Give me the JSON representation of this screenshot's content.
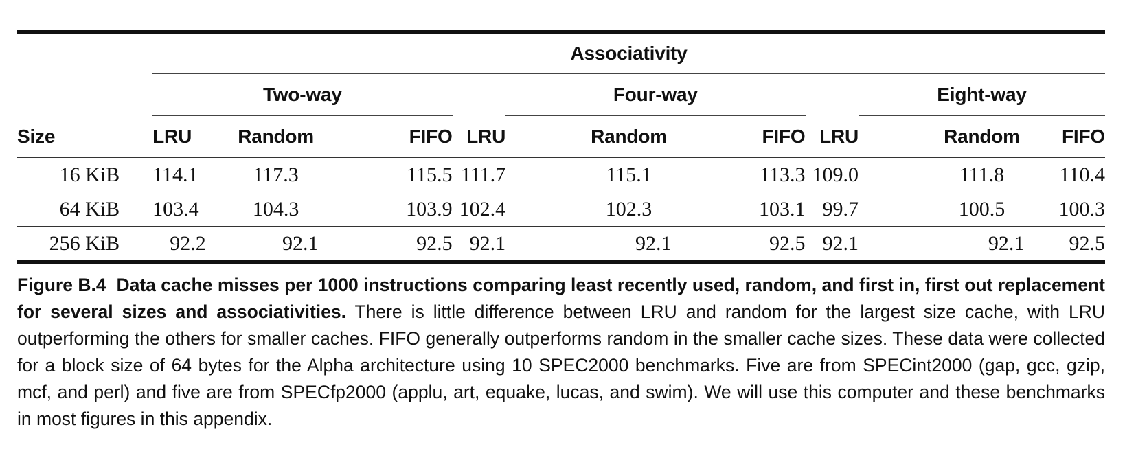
{
  "table": {
    "super_header": "Associativity",
    "groups": [
      "Two-way",
      "Four-way",
      "Eight-way"
    ],
    "columns": [
      "Size",
      "LRU",
      "Random",
      "FIFO",
      "LRU",
      "Random",
      "FIFO",
      "LRU",
      "Random",
      "FIFO"
    ],
    "rows": [
      {
        "size": "16 KiB",
        "values": [
          "114.1",
          "117.3",
          "115.5",
          "111.7",
          "115.1",
          "113.3",
          "109.0",
          "111.8",
          "110.4"
        ]
      },
      {
        "size": "64 KiB",
        "values": [
          "103.4",
          "104.3",
          "103.9",
          "102.4",
          "102.3",
          "103.1",
          "99.7",
          "100.5",
          "100.3"
        ]
      },
      {
        "size": "256 KiB",
        "values": [
          "92.2",
          "92.1",
          "92.5",
          "92.1",
          "92.1",
          "92.5",
          "92.1",
          "92.1",
          "92.5"
        ]
      }
    ]
  },
  "caption": {
    "label": "Figure B.4",
    "bold_text": "Data cache misses per 1000 instructions comparing least recently used, random, and first in, first out replacement for several sizes and associativities.",
    "body": "There is little difference between LRU and random for the largest size cache, with LRU outperforming the others for smaller caches. FIFO generally outperforms random in the smaller cache sizes. These data were collected for a block size of 64 bytes for the Alpha architecture using 10 SPEC2000 benchmarks. Five are from SPECint2000 (gap, gcc, gzip, mcf, and perl) and five are from SPECfp2000 (applu, art, equake, lucas, and swim). We will use this computer and these benchmarks in most figures in this appendix."
  }
}
